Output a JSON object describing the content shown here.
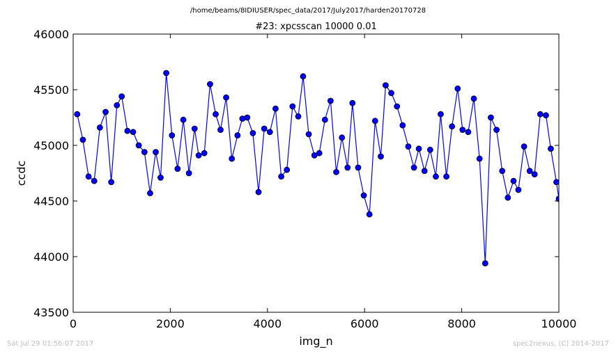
{
  "header": {
    "path": "/home/beams/8IDIUSER/spec_data/2017/July2017/harden20170728",
    "title": "#23: xpcsscan 10000 0.01"
  },
  "footer": {
    "timestamp": "Sat Jul 29 01:56:07 2017",
    "credit": "spec2nexus, (C) 2014-2017"
  },
  "colors": {
    "line": "#0000ff",
    "marker_fill": "#0000ff",
    "marker_edge": "#000000"
  },
  "chart_data": {
    "type": "line",
    "title": "#23: xpcsscan 10000 0.01",
    "xlabel": "img_n",
    "ylabel": "ccdc",
    "xlim": [
      0,
      10000
    ],
    "ylim": [
      43500,
      46000
    ],
    "xticks": [
      0,
      2000,
      4000,
      6000,
      8000,
      10000
    ],
    "yticks": [
      43500,
      44000,
      44500,
      45000,
      45500,
      46000
    ],
    "grid": false,
    "series": [
      {
        "x": [
          83,
          200,
          317,
          434,
          550,
          668,
          784,
          900,
          1000,
          1117,
          1234,
          1350,
          1468,
          1584,
          1700,
          1800,
          1917,
          2034,
          2150,
          2268,
          2384,
          2500,
          2584,
          2700,
          2818,
          2934,
          3034,
          3150,
          3267,
          3384,
          3484,
          3584,
          3700,
          3817,
          3934,
          4050,
          4167,
          4284,
          4400,
          4517,
          4634,
          4734,
          4850,
          4967,
          5067,
          5184,
          5300,
          5417,
          5534,
          5650,
          5750,
          5867,
          5984,
          6100,
          6217,
          6334,
          6434,
          6550,
          6667,
          6784,
          6900,
          7017,
          7117,
          7234,
          7350,
          7467,
          7567,
          7684,
          7800,
          7917,
          8017,
          8134,
          8250,
          8367,
          8484,
          8600,
          8717,
          8834,
          8950,
          9067,
          9167,
          9284,
          9400,
          9500,
          9617,
          9734,
          9834,
          9950,
          10000
        ],
        "y": [
          45280,
          45050,
          44720,
          44680,
          45160,
          45300,
          44670,
          45360,
          45440,
          45130,
          45120,
          45000,
          44940,
          44570,
          44940,
          44710,
          45650,
          45090,
          44790,
          45230,
          44750,
          45150,
          44910,
          44930,
          45550,
          45280,
          45140,
          45430,
          44880,
          45090,
          45240,
          45250,
          45110,
          44580,
          45150,
          45120,
          45330,
          44720,
          44780,
          45350,
          45260,
          45620,
          45100,
          44910,
          44930,
          45230,
          45400,
          44760,
          45070,
          44800,
          45380,
          44800,
          44550,
          44380,
          45220,
          44900,
          45540,
          45470,
          45350,
          45180,
          44990,
          44800,
          44970,
          44770,
          44960,
          44720,
          45280,
          44720,
          45170,
          45510,
          45140,
          45120,
          45420,
          44880,
          43940,
          45250,
          45140,
          44770,
          44530,
          44680,
          44600,
          44990,
          44770,
          44740,
          45280,
          45270,
          44970,
          44670,
          44520
        ]
      }
    ]
  }
}
